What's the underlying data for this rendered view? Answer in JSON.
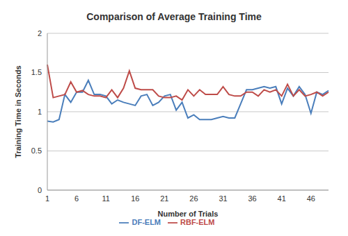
{
  "chart_data": {
    "type": "line",
    "title": "Comparison of Average Training Time",
    "x_label": "Number of Trials",
    "y_label": "Training Time in Seconds",
    "categories": [
      "1",
      null,
      null,
      null,
      null,
      "6",
      null,
      null,
      null,
      null,
      "11",
      null,
      null,
      null,
      null,
      "16",
      null,
      null,
      null,
      null,
      "21",
      null,
      null,
      null,
      null,
      "26",
      null,
      null,
      null,
      null,
      "31",
      null,
      null,
      null,
      null,
      "36",
      null,
      null,
      null,
      null,
      "41",
      null,
      null,
      null,
      null,
      "46",
      null,
      null,
      null
    ],
    "series": [
      {
        "name": "DF-ELM",
        "color": "#4a7ebb",
        "values": [
          0.88,
          0.87,
          0.9,
          1.22,
          1.12,
          1.25,
          1.25,
          1.4,
          1.22,
          1.22,
          1.2,
          1.1,
          1.15,
          1.12,
          1.1,
          1.08,
          1.2,
          1.22,
          1.08,
          1.12,
          1.2,
          1.22,
          1.02,
          1.12,
          0.92,
          0.96,
          0.9,
          0.9,
          0.9,
          0.92,
          0.94,
          0.92,
          0.92,
          1.1,
          1.28,
          1.28,
          1.3,
          1.32,
          1.3,
          1.32,
          1.1,
          1.3,
          1.2,
          1.32,
          1.22,
          0.98,
          1.25,
          1.22,
          1.27
        ]
      },
      {
        "name": "RBF-ELM",
        "color": "#be4b48",
        "values": [
          1.6,
          1.18,
          1.2,
          1.22,
          1.38,
          1.25,
          1.27,
          1.22,
          1.2,
          1.2,
          1.18,
          1.28,
          1.18,
          1.3,
          1.52,
          1.3,
          1.28,
          1.28,
          1.28,
          1.2,
          1.18,
          1.18,
          1.2,
          1.15,
          1.28,
          1.2,
          1.28,
          1.22,
          1.22,
          1.22,
          1.32,
          1.22,
          1.2,
          1.2,
          1.25,
          1.25,
          1.2,
          1.28,
          1.25,
          1.28,
          1.2,
          1.35,
          1.2,
          1.28,
          1.2,
          1.22,
          1.25,
          1.2,
          1.25
        ]
      }
    ],
    "ylim": [
      0,
      2
    ],
    "yticks": [
      0,
      0.5,
      1,
      1.5,
      2
    ],
    "grid": true,
    "legend": "bottom"
  }
}
